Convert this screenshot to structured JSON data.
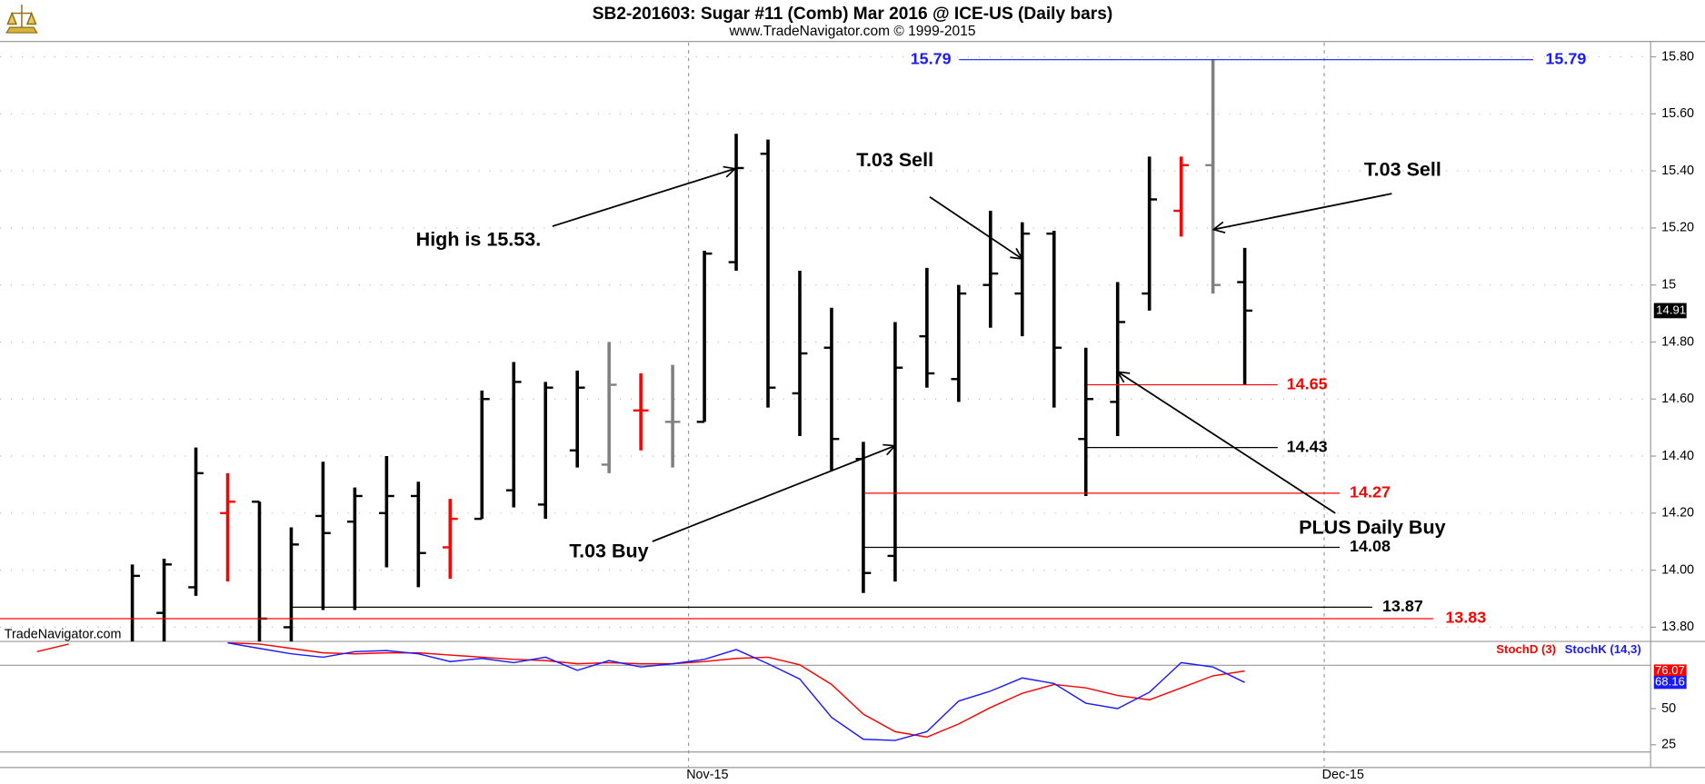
{
  "header": {
    "title": "SB2-201603:  Sugar #11 (Comb) Mar 2016 @ ICE-US  (Daily bars)",
    "subtitle": "www.TradeNavigator.com © 1999-2015"
  },
  "chart_data": [
    {
      "type": "ohlc",
      "categories": [
        null,
        null,
        null,
        null,
        null,
        null,
        null,
        null,
        null,
        null,
        null,
        null,
        null,
        null,
        null,
        null,
        null,
        null,
        null,
        null,
        null,
        null,
        null,
        null,
        null,
        null,
        null,
        null,
        null,
        null,
        null,
        null,
        null,
        null,
        null,
        null,
        null,
        null,
        null
      ],
      "open": [
        null,
        null,
        null,
        13.74,
        13.85,
        13.94,
        14.2,
        14.24,
        13.8,
        14.19,
        14.17,
        14.2,
        14.26,
        14.08,
        14.18,
        14.28,
        14.23,
        14.42,
        14.37,
        14.56,
        14.52,
        14.52,
        15.08,
        15.46,
        14.62,
        14.78,
        14.39,
        14.05,
        14.82,
        14.67,
        15.0,
        14.97,
        15.18,
        14.46,
        14.59,
        14.97,
        15.26,
        15.42,
        15.01
      ],
      "high": [
        null,
        null,
        null,
        14.02,
        14.04,
        14.43,
        14.34,
        14.24,
        14.15,
        14.38,
        14.29,
        14.4,
        14.31,
        14.25,
        14.63,
        14.73,
        14.66,
        14.7,
        14.8,
        14.69,
        14.72,
        15.12,
        15.53,
        15.51,
        15.05,
        14.92,
        14.45,
        14.87,
        15.06,
        15.0,
        15.26,
        15.22,
        15.19,
        14.78,
        15.01,
        15.45,
        15.45,
        15.79,
        15.13
      ],
      "low": [
        null,
        null,
        null,
        13.72,
        13.72,
        13.91,
        13.96,
        13.72,
        13.72,
        13.86,
        13.86,
        14.01,
        13.94,
        13.97,
        14.18,
        14.22,
        14.18,
        14.36,
        14.34,
        14.42,
        14.36,
        14.52,
        15.05,
        14.57,
        14.47,
        14.35,
        13.92,
        13.96,
        14.64,
        14.59,
        14.85,
        14.82,
        14.57,
        14.26,
        14.47,
        14.91,
        15.17,
        14.97,
        14.65
      ],
      "close": [
        null,
        null,
        null,
        13.98,
        14.02,
        14.34,
        14.24,
        13.83,
        14.09,
        14.13,
        14.26,
        14.26,
        14.06,
        14.18,
        14.6,
        14.66,
        14.64,
        14.64,
        14.65,
        14.56,
        14.52,
        15.11,
        15.41,
        14.64,
        14.76,
        14.46,
        13.99,
        14.71,
        14.69,
        14.97,
        15.04,
        15.18,
        14.78,
        14.6,
        14.87,
        15.3,
        15.42,
        15.0,
        14.91
      ],
      "colors": [
        null,
        null,
        null,
        "#000000",
        "#000000",
        "#000000",
        "#ff0000",
        "#000000",
        "#000000",
        "#000000",
        "#000000",
        "#000000",
        "#000000",
        "#ff0000",
        "#000000",
        "#000000",
        "#000000",
        "#000000",
        "#808080",
        "#ff0000",
        "#808080",
        "#000000",
        "#000000",
        "#000000",
        "#000000",
        "#000000",
        "#000000",
        "#000000",
        "#000000",
        "#000000",
        "#000000",
        "#000000",
        "#000000",
        "#000000",
        "#000000",
        "#000000",
        "#ff0000",
        "#808080",
        "#000000"
      ],
      "ylim": [
        13.75,
        15.85
      ],
      "yticks": [
        {
          "value": 15.8,
          "label": "15.80"
        },
        {
          "value": 15.6,
          "label": "15.60"
        },
        {
          "value": 15.4,
          "label": "15.40"
        },
        {
          "value": 15.2,
          "label": "15.20"
        },
        15,
        {
          "value": 14.8,
          "label": "14.80"
        },
        {
          "value": 14.6,
          "label": "14.60"
        },
        {
          "value": 14.4,
          "label": "14.40"
        },
        {
          "value": 14.2,
          "label": "14.20"
        },
        {
          "value": 14,
          "label": "14.00"
        },
        {
          "value": 13.8,
          "label": "13.80"
        }
      ],
      "xticks": [
        {
          "value": 20.5,
          "label": "Nov-15"
        },
        {
          "value": 40.5,
          "label": "Dec-15"
        }
      ],
      "grid": true,
      "last_price": 14.91,
      "levels": [
        {
          "value": 15.79,
          "color": "#1a1aff"
        },
        {
          "value": 14.65,
          "color": "#ff0000"
        },
        {
          "value": 14.43,
          "color": "#000000"
        },
        {
          "value": 14.27,
          "color": "#ff0000"
        },
        {
          "value": 14.08,
          "color": "#000000"
        },
        {
          "value": 13.87,
          "color": "#000000"
        },
        {
          "value": 13.83,
          "color": "#ff0000"
        }
      ],
      "annotations": [
        "High is 15.53.",
        "T.03 Sell",
        "T.03 Buy",
        "T.03 Sell",
        "PLUS Daily Buy"
      ],
      "watermark": "TradeNavigator.com"
    },
    {
      "type": "line",
      "series": [
        {
          "name": "StochD (3)",
          "color": "#ff0000",
          "last_value": 76.07,
          "values": [
            89.4,
            94.7,
            null,
            null,
            null,
            null,
            95.5,
            94.7,
            91.7,
            88.6,
            87.9,
            88.6,
            88.6,
            87.1,
            85.6,
            84.1,
            83.3,
            81.1,
            81.8,
            81.1,
            81.1,
            82.6,
            84.8,
            85.6,
            80.3,
            66.7,
            46.2,
            34.1,
            30.3,
            39.4,
            50.8,
            60.6,
            66.7,
            64.4,
            59.1,
            56.1,
            64.4,
            72.7,
            76.07
          ]
        },
        {
          "name": "StochK (14,3)",
          "color": "#1a1aff",
          "last_value": 68.16,
          "values": [
            null,
            null,
            null,
            null,
            null,
            null,
            95.5,
            91.7,
            87.9,
            85.6,
            89.4,
            90.2,
            87.9,
            82.6,
            84.8,
            81.8,
            85.6,
            76.5,
            83.3,
            78.8,
            81.1,
            84.1,
            90.9,
            81.1,
            70.5,
            43.9,
            28.8,
            28.0,
            34.1,
            55.3,
            62.1,
            71.2,
            67.4,
            53.8,
            50.0,
            61.4,
            81.8,
            78.8,
            68.16
          ]
        }
      ],
      "ylim": [
        10,
        95
      ],
      "yticks": [
        25,
        50
      ],
      "levels": [
        20,
        80
      ]
    }
  ]
}
